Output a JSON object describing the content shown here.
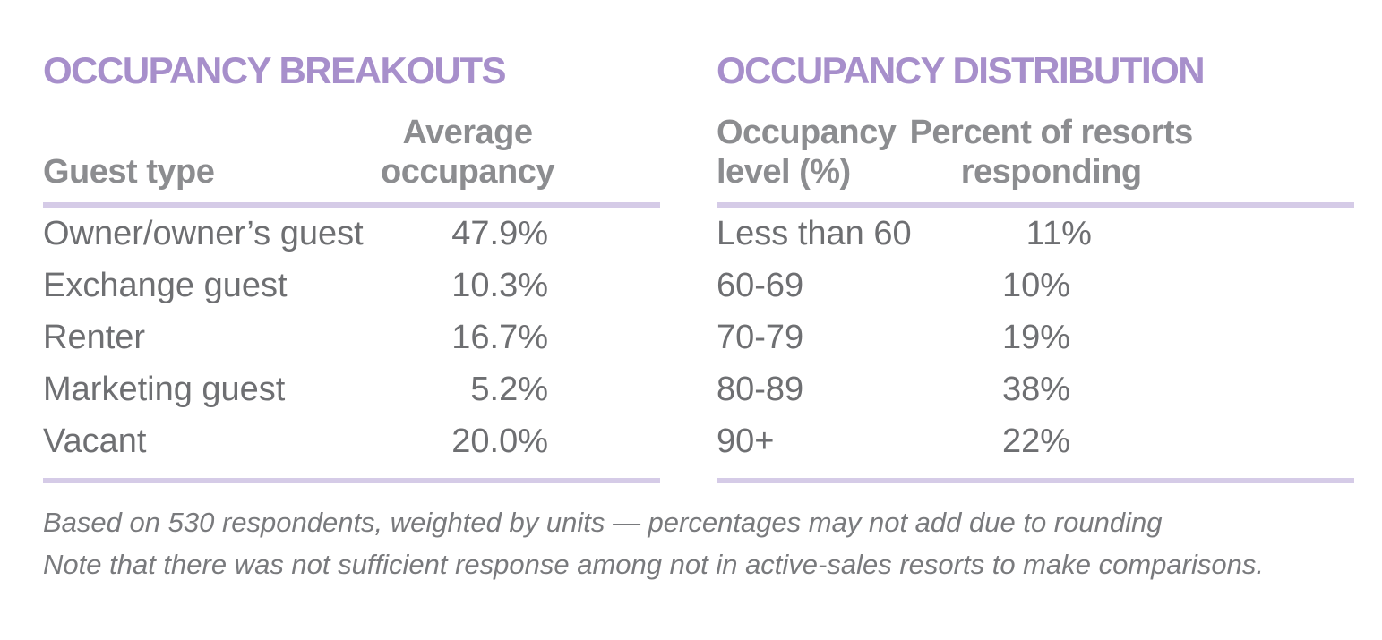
{
  "colors": {
    "accent_purple": "#a78fcb",
    "rule_purple": "#d5cbe7",
    "header_gray": "#8c8d90",
    "body_gray": "#6e6f72",
    "footnote_gray": "#797a7d",
    "background": "#ffffff"
  },
  "tables": [
    {
      "title": "OCCUPANCY BREAKOUTS",
      "columns": [
        "Guest type",
        "Average occupancy"
      ],
      "rows": [
        [
          "Owner/owner’s guest",
          "47.9%"
        ],
        [
          "Exchange guest",
          "10.3%"
        ],
        [
          "Renter",
          "16.7%"
        ],
        [
          "Marketing guest",
          "5.2%"
        ],
        [
          "Vacant",
          "20.0%"
        ]
      ]
    },
    {
      "title": "OCCUPANCY DISTRIBUTION",
      "columns": [
        "Occupancy level (%)",
        "Percent of resorts responding"
      ],
      "rows": [
        [
          "Less than 60",
          "11%"
        ],
        [
          "60-69",
          "10%"
        ],
        [
          "70-79",
          "19%"
        ],
        [
          "80-89",
          "38%"
        ],
        [
          "90+",
          "22%"
        ]
      ]
    }
  ],
  "footnotes": [
    "Based on 530 respondents, weighted by units — percentages may not add due to rounding",
    "Note that there was not sufficient response among not in active-sales resorts to make comparisons."
  ]
}
